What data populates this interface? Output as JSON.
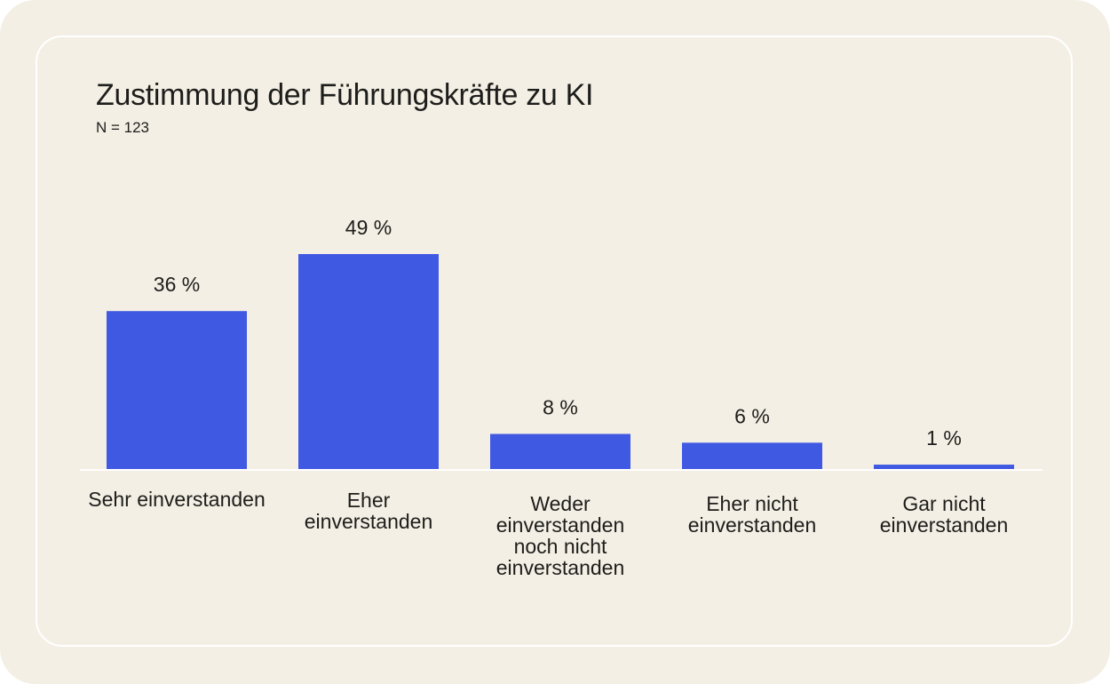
{
  "chart_data": {
    "type": "bar",
    "title": "Zustimmung der Führungskräfte zu KI",
    "subtitle": "N = 123",
    "categories": [
      "Sehr einverstanden",
      "Eher einverstanden",
      "Weder einverstanden noch nicht einverstanden",
      "Eher nicht einverstanden",
      "Gar nicht einverstanden"
    ],
    "values": [
      36,
      49,
      8,
      6,
      1
    ],
    "value_labels": [
      "36 %",
      "49 %",
      "8 %",
      "6 %",
      "1 %"
    ],
    "xlabel": "",
    "ylabel": "",
    "ylim": [
      0,
      100
    ],
    "grid": false,
    "legend": "none",
    "colors": {
      "bar": "#4059e3",
      "background": "#f3efe4",
      "text": "#1d1d1b"
    }
  }
}
